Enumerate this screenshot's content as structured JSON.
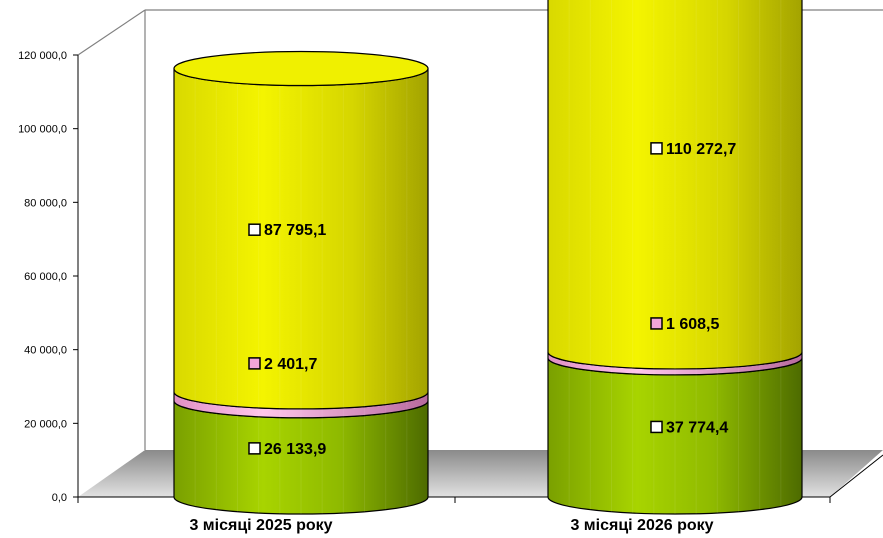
{
  "chart_data": {
    "type": "bar",
    "subtype": "stacked-cylinder-3d",
    "title": "",
    "categories": [
      "3 місяці 2025 року",
      "3 місяці 2026 року"
    ],
    "series": [
      {
        "values": [
          26133.9,
          37774.4
        ],
        "color": "#8fb800"
      },
      {
        "values": [
          2401.7,
          1608.5
        ],
        "color": "#f2a6d8"
      },
      {
        "values": [
          87795.1,
          110272.7
        ],
        "color": "#e6e600"
      }
    ],
    "data_labels": [
      [
        "26 133,9",
        "37 774,4"
      ],
      [
        "2 401,7",
        "1 608,5"
      ],
      [
        "87 795,1",
        "110 272,7"
      ]
    ],
    "y_ticks": [
      "0,0",
      "20 000,0",
      "40 000,0",
      "60 000,0",
      "80 000,0",
      "100 000,0",
      "120 000,0"
    ],
    "ylim": [
      0,
      120000
    ],
    "xlabel": "",
    "ylabel": "",
    "grid": false,
    "legend": "none"
  }
}
